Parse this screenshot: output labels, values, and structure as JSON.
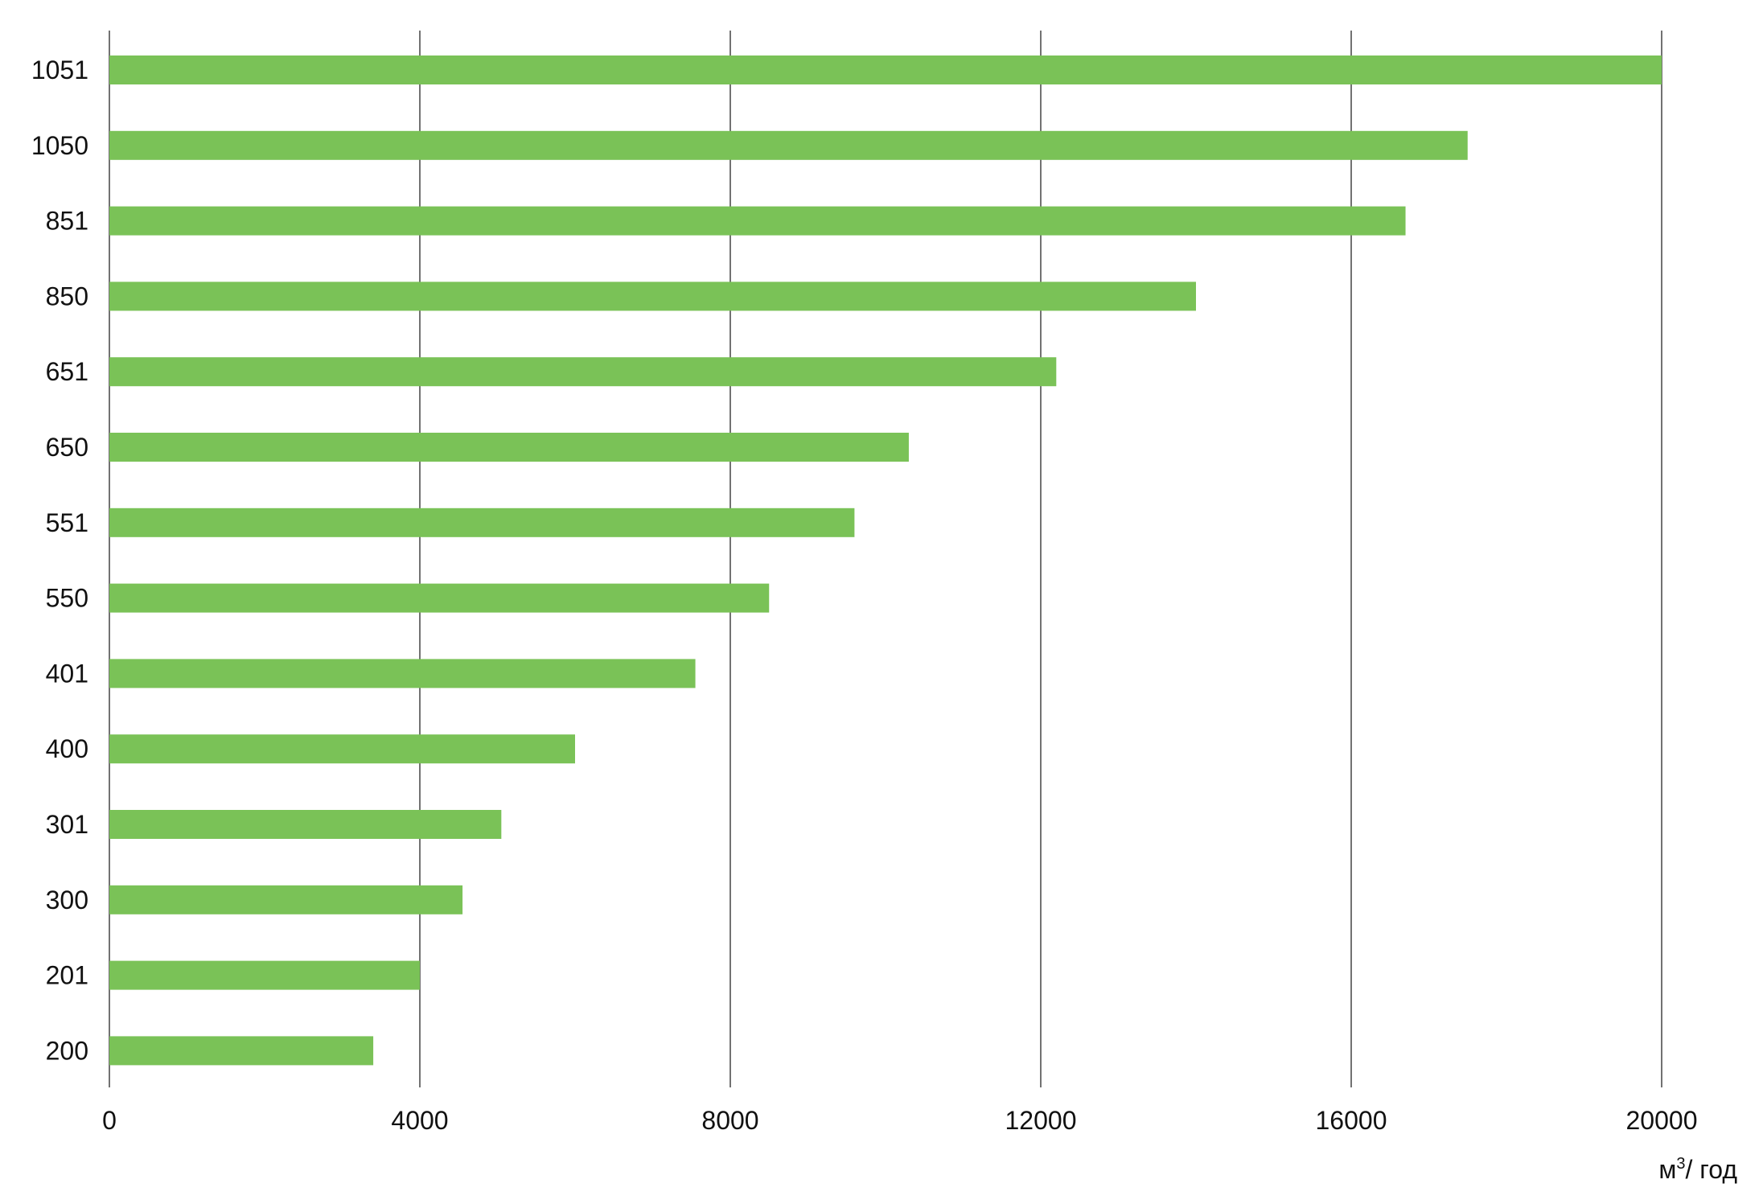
{
  "chart_data": {
    "type": "bar",
    "orientation": "horizontal",
    "categories": [
      "1051",
      "1050",
      "851",
      "850",
      "651",
      "650",
      "551",
      "550",
      "401",
      "400",
      "301",
      "300",
      "201",
      "200"
    ],
    "values": [
      20000,
      17500,
      16700,
      14000,
      12200,
      10300,
      9600,
      8500,
      7550,
      6000,
      5050,
      4550,
      4000,
      3400
    ],
    "x_ticks": [
      0,
      4000,
      8000,
      12000,
      16000,
      20000
    ],
    "x_tick_labels": [
      "0",
      "4000",
      "8000",
      "12000",
      "16000",
      "20000"
    ],
    "xlim": [
      0,
      20000
    ],
    "unit_label": {
      "base": "м",
      "superscript": "3",
      "suffix": "/ год"
    },
    "grid": "vertical",
    "bar_color": "#7ac257",
    "grid_color": "#444444"
  }
}
